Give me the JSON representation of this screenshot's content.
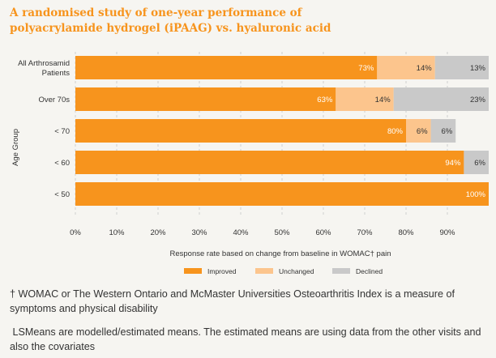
{
  "title_lines": [
    "A randomised study of one-year performance of",
    "polyacrylamide hydrogel (iPAAG) vs. hyaluronic acid"
  ],
  "colors": {
    "improved": "#f7941d",
    "unchanged": "#fcc58d",
    "declined": "#c9c9c9",
    "title": "#f7941d"
  },
  "chart_data": {
    "type": "bar",
    "orientation": "horizontal",
    "stacked": true,
    "categories": [
      "All Arthrosamid Patients",
      "Over 70s",
      "< 70",
      "< 60",
      "< 50"
    ],
    "category_lines": [
      [
        "All Arthrosamid",
        "Patients"
      ],
      [
        "Over 70s"
      ],
      [
        "< 70"
      ],
      [
        "< 60"
      ],
      [
        "< 50"
      ]
    ],
    "series": [
      {
        "name": "Improved",
        "values": [
          73,
          63,
          80,
          94,
          100
        ],
        "labels": [
          "73%",
          "63%",
          "80%",
          "94%",
          "100%"
        ]
      },
      {
        "name": "Unchanged",
        "values": [
          14,
          14,
          6,
          0,
          0
        ],
        "labels": [
          "14%",
          "14%",
          "6%",
          "",
          ""
        ]
      },
      {
        "name": "Declined",
        "values": [
          13,
          23,
          6,
          6,
          0
        ],
        "labels": [
          "13%",
          "23%",
          "6%",
          "6%",
          ""
        ]
      }
    ],
    "xlim": [
      0,
      100
    ],
    "xticks": [
      "0%",
      "10%",
      "20%",
      "30%",
      "40%",
      "50%",
      "60%",
      "70%",
      "80%",
      "90%"
    ],
    "xlabel": "Response rate based on change from baseline in WOMAC† pain",
    "ylabel": "Age Group",
    "grid": true,
    "legend_position": "bottom"
  },
  "footnotes": [
    "† WOMAC or The Western Ontario and McMaster Universities Osteoarthritis Index is a measure of symptoms and physical disability",
    " LSMeans are modelled/estimated means. The estimated means are using data from the other visits and also the covariates"
  ]
}
